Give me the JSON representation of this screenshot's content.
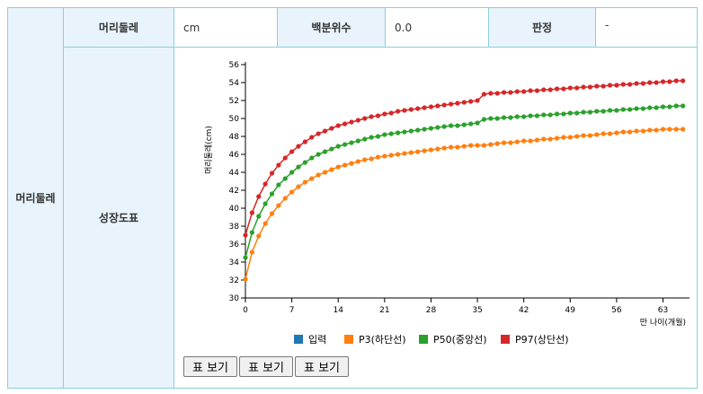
{
  "table": {
    "section": "머리둘레",
    "row1": [
      "머리둘레",
      "cm",
      "백분위수",
      "0.0",
      "판정",
      "-"
    ],
    "row2_label": "성장도표"
  },
  "buttons": [
    "표 보기",
    "표 보기",
    "표 보기"
  ],
  "chart_data": {
    "type": "line",
    "y_label": "머리둘레(cm)",
    "x_label": "만 나이(개월)",
    "x": [
      0,
      1,
      2,
      3,
      4,
      5,
      6,
      7,
      8,
      9,
      10,
      11,
      12,
      13,
      14,
      15,
      16,
      17,
      18,
      19,
      20,
      21,
      22,
      23,
      24,
      25,
      26,
      27,
      28,
      29,
      30,
      31,
      32,
      33,
      34,
      35,
      36,
      37,
      38,
      39,
      40,
      41,
      42,
      43,
      44,
      45,
      46,
      47,
      48,
      49,
      50,
      51,
      52,
      53,
      54,
      55,
      56,
      57,
      58,
      59,
      60,
      61,
      62,
      63,
      64,
      65,
      66
    ],
    "xlim": [
      0,
      67
    ],
    "xticks": [
      0,
      7,
      14,
      21,
      28,
      35,
      42,
      49,
      56,
      63
    ],
    "ylim": [
      30,
      56
    ],
    "yticks": [
      30,
      32,
      34,
      36,
      38,
      40,
      42,
      44,
      46,
      48,
      50,
      52,
      54,
      56
    ],
    "series": [
      {
        "name": "입력",
        "color": "#1f77b4",
        "values": [
          null,
          null,
          null,
          null,
          null,
          null,
          null,
          null,
          null,
          null,
          null,
          null,
          null,
          null,
          null,
          null,
          null,
          null,
          null,
          null,
          null,
          null,
          null,
          null,
          null,
          null,
          null,
          null,
          null,
          null,
          null,
          null,
          null,
          null,
          null,
          null,
          null,
          null,
          null,
          null,
          null,
          null,
          null,
          null,
          null,
          null,
          null,
          null,
          null,
          null,
          null,
          null,
          null,
          null,
          null,
          null,
          null,
          null,
          null,
          null,
          null,
          null,
          null,
          null,
          null,
          null,
          null
        ]
      },
      {
        "name": "P3(하단선)",
        "color": "#ff7f0e",
        "values": [
          32.1,
          35.1,
          36.9,
          38.3,
          39.4,
          40.3,
          41.1,
          41.8,
          42.4,
          42.9,
          43.3,
          43.7,
          44.0,
          44.3,
          44.6,
          44.8,
          45.0,
          45.2,
          45.4,
          45.5,
          45.7,
          45.8,
          45.9,
          46.0,
          46.1,
          46.2,
          46.3,
          46.4,
          46.5,
          46.6,
          46.7,
          46.8,
          46.8,
          46.9,
          47.0,
          47.0,
          47.0,
          47.1,
          47.2,
          47.3,
          47.3,
          47.4,
          47.5,
          47.5,
          47.6,
          47.7,
          47.7,
          47.8,
          47.9,
          47.9,
          48.0,
          48.1,
          48.1,
          48.2,
          48.3,
          48.3,
          48.4,
          48.5,
          48.5,
          48.6,
          48.6,
          48.7,
          48.7,
          48.8,
          48.8,
          48.8,
          48.8
        ]
      },
      {
        "name": "P50(중앙선)",
        "color": "#2ca02c",
        "values": [
          34.5,
          37.3,
          39.1,
          40.5,
          41.6,
          42.6,
          43.3,
          44.0,
          44.6,
          45.1,
          45.6,
          46.0,
          46.3,
          46.6,
          46.9,
          47.1,
          47.3,
          47.5,
          47.7,
          47.9,
          48.0,
          48.2,
          48.3,
          48.4,
          48.5,
          48.6,
          48.7,
          48.8,
          48.9,
          49.0,
          49.1,
          49.2,
          49.2,
          49.3,
          49.4,
          49.5,
          49.9,
          50.0,
          50.0,
          50.1,
          50.1,
          50.2,
          50.2,
          50.3,
          50.3,
          50.4,
          50.4,
          50.5,
          50.5,
          50.6,
          50.6,
          50.7,
          50.7,
          50.8,
          50.8,
          50.9,
          50.9,
          51.0,
          51.0,
          51.1,
          51.1,
          51.2,
          51.2,
          51.3,
          51.3,
          51.4,
          51.4
        ]
      },
      {
        "name": "P97(상단선)",
        "color": "#d62728",
        "values": [
          37.0,
          39.5,
          41.3,
          42.7,
          43.9,
          44.8,
          45.6,
          46.3,
          46.9,
          47.4,
          47.9,
          48.3,
          48.6,
          48.9,
          49.2,
          49.4,
          49.6,
          49.8,
          50.0,
          50.2,
          50.3,
          50.5,
          50.6,
          50.8,
          50.9,
          51.0,
          51.1,
          51.2,
          51.3,
          51.4,
          51.5,
          51.6,
          51.7,
          51.8,
          51.9,
          52.0,
          52.7,
          52.8,
          52.8,
          52.9,
          52.9,
          53.0,
          53.0,
          53.1,
          53.1,
          53.2,
          53.2,
          53.3,
          53.3,
          53.4,
          53.4,
          53.5,
          53.5,
          53.6,
          53.6,
          53.7,
          53.7,
          53.8,
          53.8,
          53.9,
          53.9,
          54.0,
          54.0,
          54.1,
          54.1,
          54.2,
          54.2
        ]
      }
    ]
  }
}
